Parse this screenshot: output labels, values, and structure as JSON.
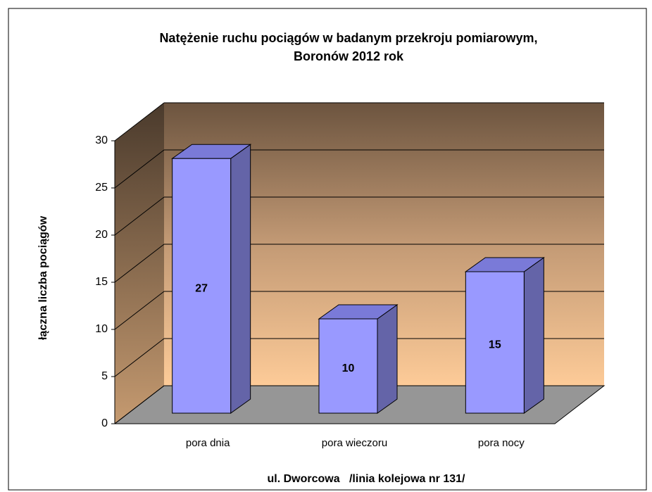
{
  "chart_data": {
    "type": "bar3d",
    "title": "Natężenie ruchu pociągów w badanym przekroju pomiarowym,",
    "subtitle": "Boronów 2012 rok",
    "y_label": "łączna liczba pociągów",
    "x_label": "ul. Dworcowa   /linia kolejowa nr 131/",
    "categories": [
      "pora dnia",
      "pora wieczoru",
      "pora nocy"
    ],
    "values": [
      27,
      10,
      15
    ],
    "color": "#9999ff",
    "ylim": [
      0,
      30
    ],
    "yticks": [
      0,
      5,
      10,
      15,
      20,
      25,
      30
    ],
    "grid": true
  }
}
